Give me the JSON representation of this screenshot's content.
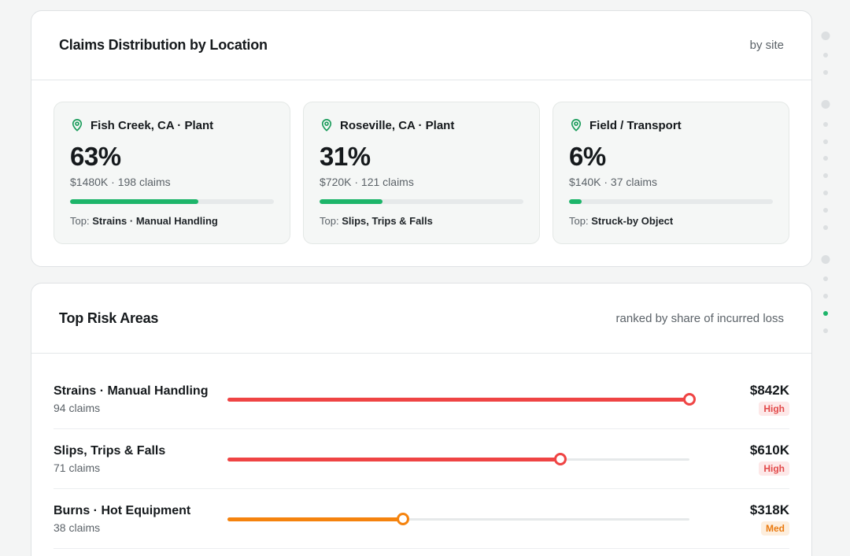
{
  "locations": {
    "title": "Claims Distribution by Location",
    "subtitle": "by site",
    "items": [
      {
        "name": "Fish Creek, CA · Plant",
        "pct": "63%",
        "meta": "$1480K · 198 claims",
        "share": 63,
        "top_prefix": "Top:",
        "top": "Strains · Manual Handling"
      },
      {
        "name": "Roseville, CA · Plant",
        "pct": "31%",
        "meta": "$720K · 121 claims",
        "share": 31,
        "top_prefix": "Top:",
        "top": "Slips, Trips & Falls"
      },
      {
        "name": "Field / Transport",
        "pct": "6%",
        "meta": "$140K · 37 claims",
        "share": 6,
        "top_prefix": "Top:",
        "top": "Struck-by Object"
      }
    ]
  },
  "risk": {
    "title": "Top Risk Areas",
    "subtitle": "ranked by share of incurred loss",
    "items": [
      {
        "name": "Strains · Manual Handling",
        "claims": "94 claims",
        "amount": "$842K",
        "level": "High",
        "share": 1.0,
        "color": "#ef4444"
      },
      {
        "name": "Slips, Trips & Falls",
        "claims": "71 claims",
        "amount": "$610K",
        "level": "High",
        "share": 0.72,
        "color": "#ef4444"
      },
      {
        "name": "Burns · Hot Equipment",
        "claims": "38 claims",
        "amount": "$318K",
        "level": "Med",
        "share": 0.38,
        "color": "#f5830e"
      }
    ]
  },
  "colors": {
    "accent": "#1db56a",
    "high": "#ef4444",
    "med": "#f5830e"
  },
  "icons": {
    "location": "map-pin-icon"
  }
}
